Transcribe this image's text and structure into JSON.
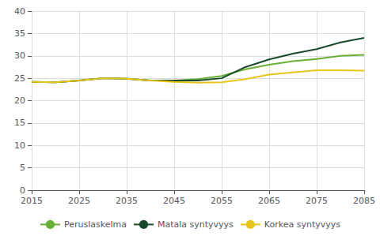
{
  "chart_data": {
    "type": "line",
    "x": [
      2015,
      2020,
      2025,
      2030,
      2035,
      2040,
      2045,
      2050,
      2055,
      2060,
      2065,
      2070,
      2075,
      2080,
      2085
    ],
    "series": [
      {
        "name": "Peruslaskelma",
        "color": "#6aaf35",
        "values": [
          24.2,
          24.1,
          24.5,
          25.0,
          24.9,
          24.5,
          24.5,
          24.8,
          25.5,
          27.0,
          28.0,
          28.8,
          29.3,
          30.0,
          30.2
        ]
      },
      {
        "name": "Matala syntyvyys",
        "color": "#1a4a2e",
        "values": [
          24.2,
          24.1,
          24.5,
          25.0,
          24.9,
          24.5,
          24.5,
          24.5,
          25.0,
          27.5,
          29.2,
          30.5,
          31.5,
          33.0,
          34.0
        ]
      },
      {
        "name": "Korkea syntyvyys",
        "color": "#e8c619",
        "values": [
          24.2,
          24.1,
          24.5,
          25.0,
          24.9,
          24.5,
          24.2,
          24.0,
          24.1,
          24.8,
          25.8,
          26.3,
          26.8,
          26.8,
          26.7
        ]
      }
    ],
    "xlim": [
      2015,
      2085
    ],
    "ylim": [
      0,
      40
    ],
    "xticks": [
      2015,
      2025,
      2035,
      2045,
      2055,
      2065,
      2075,
      2085
    ],
    "yticks": [
      0,
      5,
      10,
      15,
      20,
      25,
      30,
      35,
      40
    ],
    "grid": true,
    "legend": "bottom"
  }
}
